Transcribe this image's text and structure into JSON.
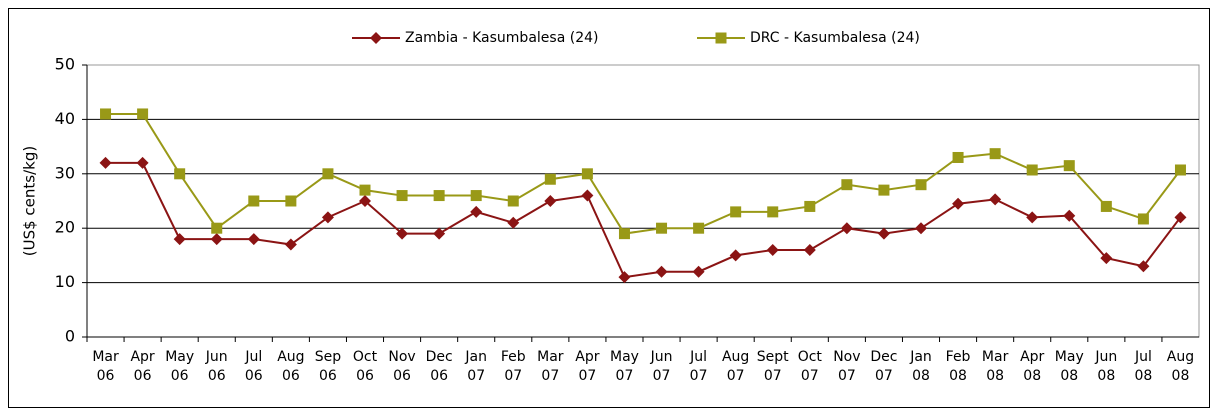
{
  "chart_data": {
    "type": "line",
    "ylabel": "(US$ cents/kg)",
    "categories": [
      "Mar 06",
      "Apr 06",
      "May 06",
      "Jun 06",
      "Jul 06",
      "Aug 06",
      "Sep 06",
      "Oct 06",
      "Nov 06",
      "Dec 06",
      "Jan 07",
      "Feb 07",
      "Mar 07",
      "Apr 07",
      "May 07",
      "Jun 07",
      "Jul 07",
      "Aug 07",
      "Sept 07",
      "Oct 07",
      "Nov 07",
      "Dec 07",
      "Jan 08",
      "Feb 08",
      "Mar 08",
      "Apr 08",
      "May 08",
      "Jun 08",
      "Jul 08",
      "Aug 08"
    ],
    "series": [
      {
        "name": "Zambia - Kasumbalesa (24)",
        "color": "#8b1414",
        "marker": "diamond",
        "values": [
          32,
          32,
          18,
          18,
          18,
          17,
          22,
          25,
          19,
          19,
          23,
          21,
          25,
          26,
          11,
          12,
          12,
          15,
          16,
          16,
          20,
          19,
          20,
          24.5,
          25.3,
          22,
          22.3,
          14.5,
          13,
          22
        ]
      },
      {
        "name": "DRC - Kasumbalesa (24)",
        "color": "#999917",
        "marker": "square",
        "values": [
          41,
          41,
          30,
          20,
          25,
          25,
          30,
          27,
          26,
          26,
          26,
          25,
          29,
          30,
          19,
          20,
          20,
          23,
          23,
          24,
          28,
          27,
          28,
          33,
          33.7,
          30.7,
          31.5,
          24,
          21.7,
          30.7
        ]
      }
    ],
    "ylim": [
      0,
      50
    ],
    "yticks": [
      0,
      10,
      20,
      30,
      40,
      50
    ],
    "grid": true
  }
}
